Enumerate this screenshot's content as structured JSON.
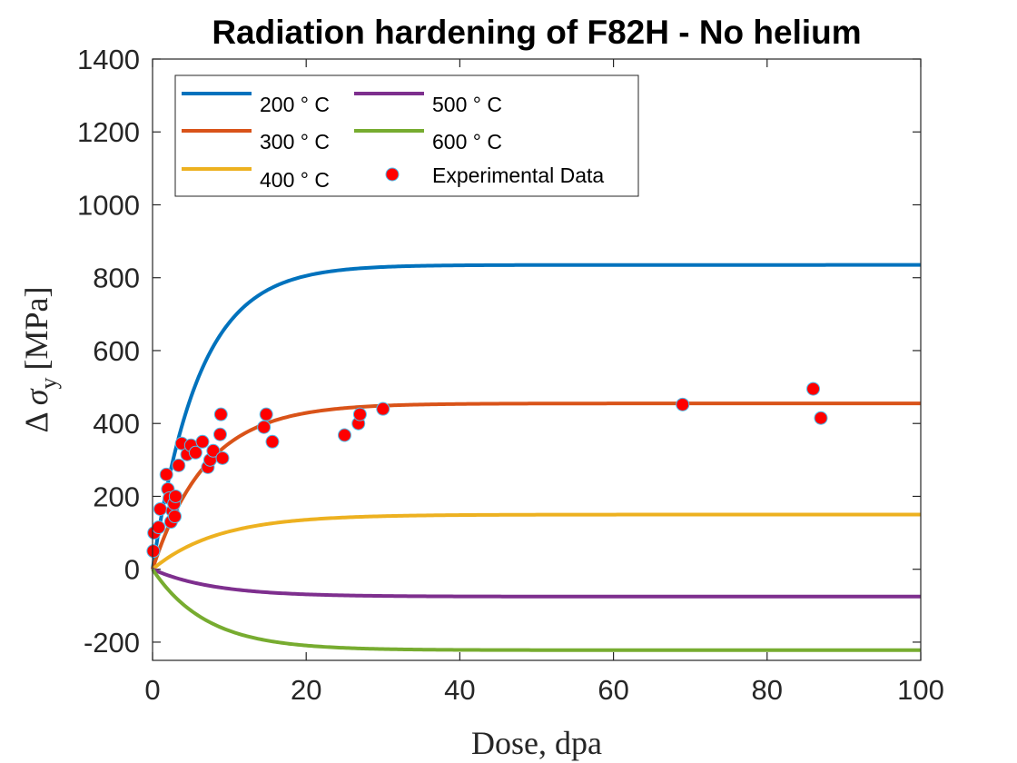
{
  "chart_data": {
    "type": "line",
    "title": "Radiation hardening of F82H - No helium",
    "xlabel": "Dose, dpa",
    "ylabel": {
      "prefix": "Δ",
      "symbol": "σ",
      "subscript": "y",
      "unit": "[MPa]"
    },
    "xlim": [
      0,
      100
    ],
    "ylim": [
      -250,
      1400
    ],
    "xticks": [
      "0",
      "20",
      "40",
      "60",
      "80",
      "100"
    ],
    "yticks": [
      "-200",
      "0",
      "200",
      "400",
      "600",
      "800",
      "1000",
      "1200",
      "1400"
    ],
    "grid": false,
    "legend_position": "top-left",
    "series": [
      {
        "name": "200 ° C",
        "color": "#0072BD",
        "saturation": 835,
        "dose_constant": 6.0
      },
      {
        "name": "300 ° C",
        "color": "#D95319",
        "saturation": 455,
        "dose_constant": 7.0
      },
      {
        "name": "400 ° C",
        "color": "#EDB120",
        "saturation": 150,
        "dose_constant": 8.5
      },
      {
        "name": "500 ° C",
        "color": "#7E2F8E",
        "saturation": -75,
        "dose_constant": 8.0
      },
      {
        "name": "600 ° C",
        "color": "#77AC30",
        "saturation": -222,
        "dose_constant": 7.0
      }
    ],
    "experimental": {
      "name": "Experimental Data",
      "color": "#FF0000",
      "edge_color": "#4DBEEE",
      "points": [
        [
          0.1,
          50
        ],
        [
          0.2,
          100
        ],
        [
          0.8,
          115
        ],
        [
          1.0,
          165
        ],
        [
          1.8,
          260
        ],
        [
          2.0,
          220
        ],
        [
          2.2,
          195
        ],
        [
          2.4,
          130
        ],
        [
          2.6,
          160
        ],
        [
          2.8,
          180
        ],
        [
          3.0,
          200
        ],
        [
          2.9,
          145
        ],
        [
          3.4,
          285
        ],
        [
          3.8,
          345
        ],
        [
          4.5,
          315
        ],
        [
          5.0,
          340
        ],
        [
          5.6,
          320
        ],
        [
          6.5,
          350
        ],
        [
          7.2,
          280
        ],
        [
          7.5,
          300
        ],
        [
          7.9,
          325
        ],
        [
          8.8,
          370
        ],
        [
          8.9,
          425
        ],
        [
          9.1,
          305
        ],
        [
          14.5,
          390
        ],
        [
          14.8,
          425
        ],
        [
          15.6,
          350
        ],
        [
          25.0,
          368
        ],
        [
          26.8,
          400
        ],
        [
          27.0,
          425
        ],
        [
          30.0,
          440
        ],
        [
          69.0,
          452
        ],
        [
          86.0,
          495
        ],
        [
          87.0,
          415
        ]
      ]
    }
  }
}
